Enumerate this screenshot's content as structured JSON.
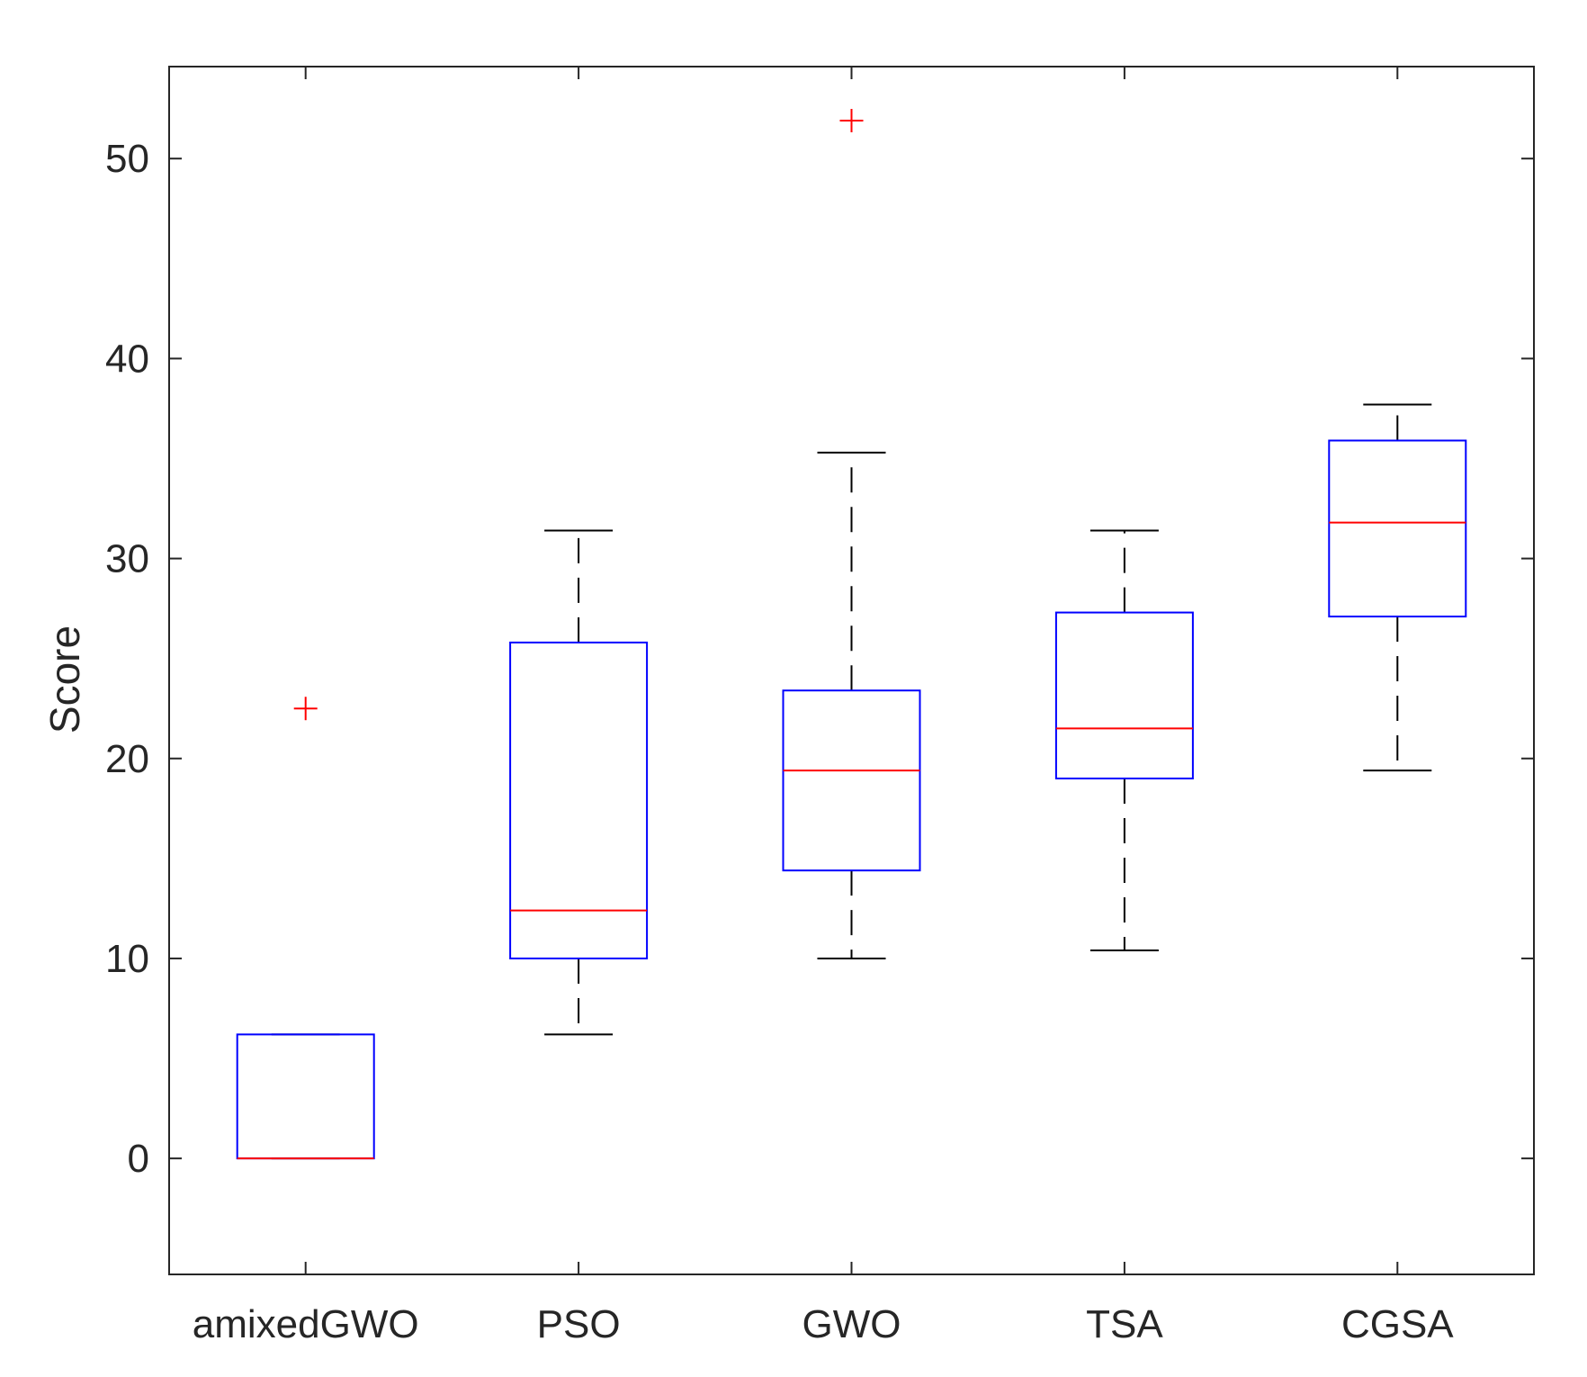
{
  "chart_data": {
    "type": "boxplot",
    "title": "",
    "xlabel": "",
    "ylabel": "Score",
    "ylim": [
      -5.8,
      54.6
    ],
    "yticks": [
      0,
      10,
      20,
      30,
      40,
      50
    ],
    "grid": false,
    "categories": [
      "amixedGWO",
      "PSO",
      "GWO",
      "TSA",
      "CGSA"
    ],
    "boxes": [
      {
        "name": "amixedGWO",
        "whisker_low": 0.0,
        "q1": 0.0,
        "median": 0.0,
        "q3": 6.2,
        "whisker_high": 6.2,
        "outliers": [
          22.5
        ]
      },
      {
        "name": "PSO",
        "whisker_low": 6.2,
        "q1": 10.0,
        "median": 12.4,
        "q3": 25.8,
        "whisker_high": 31.4,
        "outliers": []
      },
      {
        "name": "GWO",
        "whisker_low": 10.0,
        "q1": 14.4,
        "median": 19.4,
        "q3": 23.4,
        "whisker_high": 35.3,
        "outliers": [
          51.9
        ]
      },
      {
        "name": "TSA",
        "whisker_low": 10.4,
        "q1": 19.0,
        "median": 21.5,
        "q3": 27.3,
        "whisker_high": 31.4,
        "outliers": []
      },
      {
        "name": "CGSA",
        "whisker_low": 19.4,
        "q1": 27.1,
        "median": 31.8,
        "q3": 35.9,
        "whisker_high": 37.7,
        "outliers": []
      }
    ],
    "colors": {
      "box": "#0000ff",
      "median": "#ff0000",
      "whisker": "#000000",
      "outlier": "#ff0000",
      "axis": "#262626"
    }
  }
}
